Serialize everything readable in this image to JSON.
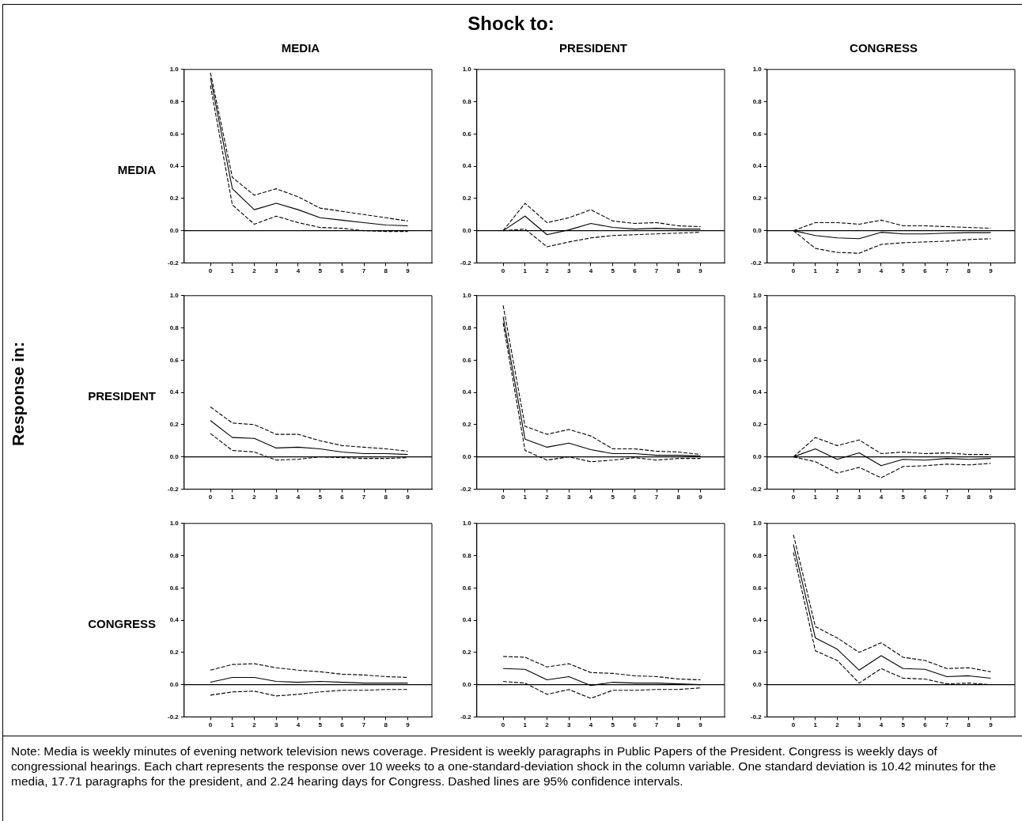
{
  "chart_data": [
    {
      "type": "line",
      "title": "MEDIA",
      "ylabel": "MEDIA",
      "annotations": [
        "Shock to:",
        "Response in:",
        "Note: Media is weekly minutes of evening network television news coverage. President is weekly paragraphs in Public Papers of the President. Congress is weekly days of congressional hearings. Each chart represents the response over 10 weeks to a one-standard-deviation shock in the column variable. One standard deviation is 10.42 minutes for the media, 17.71 paragraphs for the president, and 2.24 hearing days for Congress. Dashed lines are 95% confidence intervals."
      ],
      "x": [
        0,
        1,
        2,
        3,
        4,
        5,
        6,
        7,
        8,
        9
      ],
      "xlim": [
        -1.2,
        10.1
      ],
      "xticks": [
        0,
        1,
        2,
        3,
        4,
        5,
        6,
        7,
        8,
        9
      ],
      "ylim": [
        -0.2,
        1.0
      ],
      "yticks": [
        {
          "value": -0.2,
          "label": "-0.2"
        },
        {
          "value": 0,
          "label": "0.0"
        },
        {
          "value": 0.2,
          "label": "0.2"
        },
        {
          "value": 0.4,
          "label": "0.4"
        },
        {
          "value": 0.6,
          "label": "0.6"
        },
        {
          "value": 0.8,
          "label": "0.8"
        },
        {
          "value": 1.0,
          "label": "1.0"
        }
      ],
      "grid": false,
      "legend": false,
      "ref_lines": [
        {
          "axis": "y",
          "value": 0,
          "color": "#000000"
        }
      ],
      "series": [
        {
          "color": "#000000",
          "line_style": "solid",
          "values": [
            0.95,
            0.26,
            0.13,
            0.17,
            0.13,
            0.08,
            0.065,
            0.05,
            0.035,
            0.03
          ]
        },
        {
          "color": "#000000",
          "line_style": "dashed",
          "values": [
            0.98,
            0.33,
            0.22,
            0.26,
            0.21,
            0.14,
            0.12,
            0.1,
            0.08,
            0.06
          ]
        },
        {
          "color": "#000000",
          "line_style": "dashed",
          "values": [
            0.9,
            0.16,
            0.04,
            0.09,
            0.05,
            0.02,
            0.015,
            0.0,
            -0.005,
            -0.005
          ]
        }
      ]
    },
    {
      "type": "line",
      "title": "PRESIDENT",
      "x": [
        0,
        1,
        2,
        3,
        4,
        5,
        6,
        7,
        8,
        9
      ],
      "xlim": [
        -1.2,
        10.1
      ],
      "xticks": [
        0,
        1,
        2,
        3,
        4,
        5,
        6,
        7,
        8,
        9
      ],
      "ylim": [
        -0.2,
        1.0
      ],
      "yticks": [
        {
          "value": -0.2,
          "label": "-0.2"
        },
        {
          "value": 0,
          "label": "0.0"
        },
        {
          "value": 0.2,
          "label": "0.2"
        },
        {
          "value": 0.4,
          "label": "0.4"
        },
        {
          "value": 0.6,
          "label": "0.6"
        },
        {
          "value": 0.8,
          "label": "0.8"
        },
        {
          "value": 1.0,
          "label": "1.0"
        }
      ],
      "grid": false,
      "legend": false,
      "ref_lines": [
        {
          "axis": "y",
          "value": 0,
          "color": "#000000"
        }
      ],
      "series": [
        {
          "color": "#000000",
          "line_style": "solid",
          "values": [
            0,
            0.09,
            -0.025,
            0.005,
            0.045,
            0.02,
            0.01,
            0.015,
            0.01,
            0.01
          ]
        },
        {
          "color": "#000000",
          "line_style": "dashed",
          "values": [
            0,
            0.17,
            0.05,
            0.08,
            0.13,
            0.06,
            0.045,
            0.05,
            0.03,
            0.025
          ]
        },
        {
          "color": "#000000",
          "line_style": "dashed",
          "values": [
            0,
            0.01,
            -0.1,
            -0.07,
            -0.045,
            -0.03,
            -0.025,
            -0.02,
            -0.015,
            -0.01
          ]
        }
      ]
    },
    {
      "type": "line",
      "title": "CONGRESS",
      "x": [
        0,
        1,
        2,
        3,
        4,
        5,
        6,
        7,
        8,
        9
      ],
      "xlim": [
        -1.2,
        10.1
      ],
      "xticks": [
        0,
        1,
        2,
        3,
        4,
        5,
        6,
        7,
        8,
        9
      ],
      "ylim": [
        -0.2,
        1.0
      ],
      "yticks": [
        {
          "value": -0.2,
          "label": "-0.2"
        },
        {
          "value": 0,
          "label": "0.0"
        },
        {
          "value": 0.2,
          "label": "0.2"
        },
        {
          "value": 0.4,
          "label": "0.4"
        },
        {
          "value": 0.6,
          "label": "0.6"
        },
        {
          "value": 0.8,
          "label": "0.8"
        },
        {
          "value": 1.0,
          "label": "1.0"
        }
      ],
      "grid": false,
      "legend": false,
      "ref_lines": [
        {
          "axis": "y",
          "value": 0,
          "color": "#000000"
        }
      ],
      "series": [
        {
          "color": "#000000",
          "line_style": "solid",
          "values": [
            0,
            -0.03,
            -0.045,
            -0.05,
            -0.01,
            -0.02,
            -0.02,
            -0.015,
            -0.012,
            -0.012
          ]
        },
        {
          "color": "#000000",
          "line_style": "dashed",
          "values": [
            0,
            0.05,
            0.05,
            0.04,
            0.065,
            0.03,
            0.03,
            0.025,
            0.02,
            0.015
          ]
        },
        {
          "color": "#000000",
          "line_style": "dashed",
          "values": [
            0,
            -0.11,
            -0.135,
            -0.14,
            -0.085,
            -0.075,
            -0.07,
            -0.065,
            -0.055,
            -0.05
          ]
        }
      ]
    },
    {
      "type": "line",
      "ylabel": "PRESIDENT",
      "x": [
        0,
        1,
        2,
        3,
        4,
        5,
        6,
        7,
        8,
        9
      ],
      "xlim": [
        -1.2,
        10.1
      ],
      "xticks": [
        0,
        1,
        2,
        3,
        4,
        5,
        6,
        7,
        8,
        9
      ],
      "ylim": [
        -0.2,
        1.0
      ],
      "yticks": [
        {
          "value": -0.2,
          "label": "-0.2"
        },
        {
          "value": 0,
          "label": "0.0"
        },
        {
          "value": 0.2,
          "label": "0.2"
        },
        {
          "value": 0.4,
          "label": "0.4"
        },
        {
          "value": 0.6,
          "label": "0.6"
        },
        {
          "value": 0.8,
          "label": "0.8"
        },
        {
          "value": 1.0,
          "label": "1.0"
        }
      ],
      "grid": false,
      "legend": false,
      "ref_lines": [
        {
          "axis": "y",
          "value": 0,
          "color": "#000000"
        }
      ],
      "series": [
        {
          "color": "#000000",
          "line_style": "solid",
          "values": [
            0.225,
            0.12,
            0.115,
            0.055,
            0.06,
            0.05,
            0.03,
            0.02,
            0.02,
            0.015
          ]
        },
        {
          "color": "#000000",
          "line_style": "dashed",
          "values": [
            0.31,
            0.21,
            0.2,
            0.14,
            0.14,
            0.1,
            0.07,
            0.06,
            0.05,
            0.035
          ]
        },
        {
          "color": "#000000",
          "line_style": "dashed",
          "values": [
            0.145,
            0.04,
            0.03,
            -0.02,
            -0.015,
            0,
            -0.005,
            -0.01,
            -0.01,
            -0.005
          ]
        }
      ]
    },
    {
      "type": "line",
      "x": [
        0,
        1,
        2,
        3,
        4,
        5,
        6,
        7,
        8,
        9
      ],
      "xlim": [
        -1.2,
        10.1
      ],
      "xticks": [
        0,
        1,
        2,
        3,
        4,
        5,
        6,
        7,
        8,
        9
      ],
      "ylim": [
        -0.2,
        1.0
      ],
      "yticks": [
        {
          "value": -0.2,
          "label": "-0.2"
        },
        {
          "value": 0,
          "label": "0.0"
        },
        {
          "value": 0.2,
          "label": "0.2"
        },
        {
          "value": 0.4,
          "label": "0.4"
        },
        {
          "value": 0.6,
          "label": "0.6"
        },
        {
          "value": 0.8,
          "label": "0.8"
        },
        {
          "value": 1.0,
          "label": "1.0"
        }
      ],
      "grid": false,
      "legend": false,
      "ref_lines": [
        {
          "axis": "y",
          "value": 0,
          "color": "#000000"
        }
      ],
      "series": [
        {
          "color": "#000000",
          "line_style": "solid",
          "values": [
            0.87,
            0.11,
            0.06,
            0.085,
            0.045,
            0.02,
            0.02,
            0.01,
            0.01,
            0.005
          ]
        },
        {
          "color": "#000000",
          "line_style": "dashed",
          "values": [
            0.94,
            0.19,
            0.14,
            0.17,
            0.13,
            0.05,
            0.05,
            0.035,
            0.03,
            0.015
          ]
        },
        {
          "color": "#000000",
          "line_style": "dashed",
          "values": [
            0.83,
            0.04,
            -0.02,
            0.0,
            -0.03,
            -0.02,
            -0.005,
            -0.02,
            -0.01,
            -0.01
          ]
        }
      ]
    },
    {
      "type": "line",
      "x": [
        0,
        1,
        2,
        3,
        4,
        5,
        6,
        7,
        8,
        9
      ],
      "xlim": [
        -1.2,
        10.1
      ],
      "xticks": [
        0,
        1,
        2,
        3,
        4,
        5,
        6,
        7,
        8,
        9
      ],
      "ylim": [
        -0.2,
        1.0
      ],
      "yticks": [
        {
          "value": -0.2,
          "label": "-0.2"
        },
        {
          "value": 0,
          "label": "0.0"
        },
        {
          "value": 0.2,
          "label": "0.2"
        },
        {
          "value": 0.4,
          "label": "0.4"
        },
        {
          "value": 0.6,
          "label": "0.6"
        },
        {
          "value": 0.8,
          "label": "0.8"
        },
        {
          "value": 1.0,
          "label": "1.0"
        }
      ],
      "grid": false,
      "legend": false,
      "ref_lines": [
        {
          "axis": "y",
          "value": 0,
          "color": "#000000"
        }
      ],
      "series": [
        {
          "color": "#000000",
          "line_style": "solid",
          "values": [
            0,
            0.05,
            -0.015,
            0.025,
            -0.055,
            -0.015,
            -0.02,
            -0.01,
            -0.015,
            -0.01
          ]
        },
        {
          "color": "#000000",
          "line_style": "dashed",
          "values": [
            0,
            0.12,
            0.07,
            0.105,
            0.02,
            0.03,
            0.02,
            0.025,
            0.015,
            0.015
          ]
        },
        {
          "color": "#000000",
          "line_style": "dashed",
          "values": [
            0,
            -0.03,
            -0.1,
            -0.065,
            -0.13,
            -0.06,
            -0.055,
            -0.045,
            -0.05,
            -0.04
          ]
        }
      ]
    },
    {
      "type": "line",
      "ylabel": "CONGRESS",
      "x": [
        0,
        1,
        2,
        3,
        4,
        5,
        6,
        7,
        8,
        9
      ],
      "xlim": [
        -1.2,
        10.1
      ],
      "xticks": [
        0,
        1,
        2,
        3,
        4,
        5,
        6,
        7,
        8,
        9
      ],
      "ylim": [
        -0.2,
        1.0
      ],
      "yticks": [
        {
          "value": -0.2,
          "label": "-0.2"
        },
        {
          "value": 0,
          "label": "0.0"
        },
        {
          "value": 0.2,
          "label": "0.2"
        },
        {
          "value": 0.4,
          "label": "0.4"
        },
        {
          "value": 0.6,
          "label": "0.6"
        },
        {
          "value": 0.8,
          "label": "0.8"
        },
        {
          "value": 1.0,
          "label": "1.0"
        }
      ],
      "grid": false,
      "legend": false,
      "ref_lines": [
        {
          "axis": "y",
          "value": 0,
          "color": "#000000"
        }
      ],
      "series": [
        {
          "color": "#000000",
          "line_style": "solid",
          "values": [
            0.015,
            0.045,
            0.045,
            0.02,
            0.015,
            0.02,
            0.015,
            0.01,
            0.01,
            0.01
          ]
        },
        {
          "color": "#000000",
          "line_style": "dashed",
          "values": [
            0.09,
            0.125,
            0.13,
            0.105,
            0.09,
            0.08,
            0.065,
            0.06,
            0.05,
            0.045
          ]
        },
        {
          "color": "#000000",
          "line_style": "dashed",
          "values": [
            -0.065,
            -0.045,
            -0.04,
            -0.07,
            -0.06,
            -0.045,
            -0.035,
            -0.035,
            -0.03,
            -0.03
          ]
        }
      ]
    },
    {
      "type": "line",
      "x": [
        0,
        1,
        2,
        3,
        4,
        5,
        6,
        7,
        8,
        9
      ],
      "xlim": [
        -1.2,
        10.1
      ],
      "xticks": [
        0,
        1,
        2,
        3,
        4,
        5,
        6,
        7,
        8,
        9
      ],
      "ylim": [
        -0.2,
        1.0
      ],
      "yticks": [
        {
          "value": -0.2,
          "label": "-0.2"
        },
        {
          "value": 0,
          "label": "0.0"
        },
        {
          "value": 0.2,
          "label": "0.2"
        },
        {
          "value": 0.4,
          "label": "0.4"
        },
        {
          "value": 0.6,
          "label": "0.6"
        },
        {
          "value": 0.8,
          "label": "0.8"
        },
        {
          "value": 1.0,
          "label": "1.0"
        }
      ],
      "grid": false,
      "legend": false,
      "ref_lines": [
        {
          "axis": "y",
          "value": 0,
          "color": "#000000"
        }
      ],
      "series": [
        {
          "color": "#000000",
          "line_style": "solid",
          "values": [
            0.1,
            0.095,
            0.03,
            0.05,
            -0.005,
            0.015,
            0.01,
            0.01,
            0.005,
            0.0
          ]
        },
        {
          "color": "#000000",
          "line_style": "dashed",
          "values": [
            0.175,
            0.17,
            0.11,
            0.13,
            0.075,
            0.07,
            0.055,
            0.05,
            0.035,
            0.03
          ]
        },
        {
          "color": "#000000",
          "line_style": "dashed",
          "values": [
            0.02,
            0.01,
            -0.06,
            -0.03,
            -0.085,
            -0.035,
            -0.035,
            -0.03,
            -0.03,
            -0.02
          ]
        }
      ]
    },
    {
      "type": "line",
      "x": [
        0,
        1,
        2,
        3,
        4,
        5,
        6,
        7,
        8,
        9
      ],
      "xlim": [
        -1.2,
        10.1
      ],
      "xticks": [
        0,
        1,
        2,
        3,
        4,
        5,
        6,
        7,
        8,
        9
      ],
      "ylim": [
        -0.2,
        1.0
      ],
      "yticks": [
        {
          "value": -0.2,
          "label": "-0.2"
        },
        {
          "value": 0,
          "label": "0.0"
        },
        {
          "value": 0.2,
          "label": "0.2"
        },
        {
          "value": 0.4,
          "label": "0.4"
        },
        {
          "value": 0.6,
          "label": "0.6"
        },
        {
          "value": 0.8,
          "label": "0.8"
        },
        {
          "value": 1.0,
          "label": "1.0"
        }
      ],
      "grid": false,
      "legend": false,
      "ref_lines": [
        {
          "axis": "y",
          "value": 0,
          "color": "#000000"
        }
      ],
      "series": [
        {
          "color": "#000000",
          "line_style": "solid",
          "values": [
            0.87,
            0.29,
            0.22,
            0.09,
            0.18,
            0.1,
            0.095,
            0.05,
            0.055,
            0.04
          ]
        },
        {
          "color": "#000000",
          "line_style": "dashed",
          "values": [
            0.93,
            0.36,
            0.29,
            0.2,
            0.26,
            0.17,
            0.15,
            0.1,
            0.105,
            0.08
          ]
        },
        {
          "color": "#000000",
          "line_style": "dashed",
          "values": [
            0.82,
            0.21,
            0.15,
            0.01,
            0.1,
            0.04,
            0.035,
            0.005,
            0.01,
            0.0
          ]
        }
      ]
    }
  ]
}
